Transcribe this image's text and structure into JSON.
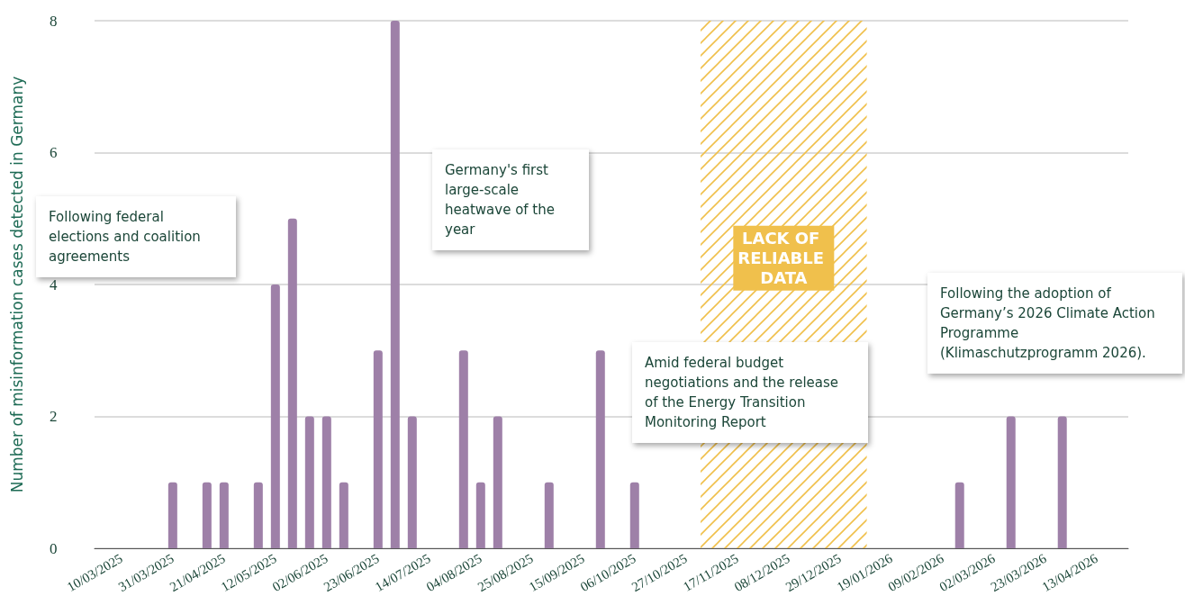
{
  "chart_data": {
    "type": "bar",
    "ylabel": "Number of misinformation cases detected in Germany",
    "x": [
      "2025-03-31",
      "2025-04-14",
      "2025-04-21",
      "2025-05-05",
      "2025-05-12",
      "2025-05-19",
      "2025-05-26",
      "2025-06-02",
      "2025-06-09",
      "2025-06-23",
      "2025-06-30",
      "2025-07-07",
      "2025-07-28",
      "2025-08-04",
      "2025-08-11",
      "2025-09-01",
      "2025-09-22",
      "2025-10-06",
      "2026-02-16",
      "2026-03-09",
      "2026-03-30"
    ],
    "values": [
      1,
      1,
      1,
      1,
      4,
      5,
      2,
      2,
      1,
      3,
      8,
      2,
      3,
      1,
      2,
      1,
      3,
      1,
      1,
      2,
      2
    ],
    "color": "#9e80a8",
    "xlim": [
      "2025-02-27",
      "2026-04-26"
    ],
    "xticks": [
      {
        "value": "2025-03-10",
        "label": "10/03/2025"
      },
      {
        "value": "2025-03-31",
        "label": "31/03/2025"
      },
      {
        "value": "2025-04-21",
        "label": "21/04/2025"
      },
      {
        "value": "2025-05-12",
        "label": "12/05/2025"
      },
      {
        "value": "2025-06-02",
        "label": "02/06/2025"
      },
      {
        "value": "2025-06-23",
        "label": "23/06/2025"
      },
      {
        "value": "2025-07-14",
        "label": "14/07/2025"
      },
      {
        "value": "2025-08-04",
        "label": "04/08/2025"
      },
      {
        "value": "2025-08-25",
        "label": "25/08/2025"
      },
      {
        "value": "2025-09-15",
        "label": "15/09/2025"
      },
      {
        "value": "2025-10-06",
        "label": "06/10/2025"
      },
      {
        "value": "2025-10-27",
        "label": "27/10/2025"
      },
      {
        "value": "2025-11-17",
        "label": "17/11/2025"
      },
      {
        "value": "2025-12-08",
        "label": "08/12/2025"
      },
      {
        "value": "2025-12-29",
        "label": "29/12/2025"
      },
      {
        "value": "2026-01-19",
        "label": "19/01/2026"
      },
      {
        "value": "2026-02-09",
        "label": "09/02/2026"
      },
      {
        "value": "2026-03-02",
        "label": "02/03/2026"
      },
      {
        "value": "2026-03-23",
        "label": "23/03/2026"
      },
      {
        "value": "2026-04-13",
        "label": "13/04/2026"
      }
    ],
    "ylim": [
      0,
      8
    ],
    "yticks": [
      0,
      2,
      4,
      6,
      8
    ],
    "grid": "y",
    "bands": [
      {
        "axis": "x",
        "from": "2025-11-02",
        "to": "2026-01-09",
        "label": "LACK OF RELIABLE DATA",
        "color": "#f0c04c"
      }
    ],
    "annotations": [
      "Following federal elections and coalition agreements",
      "Germany's first large-scale heatwave of the year",
      "Amid federal budget negotiations and the release of the Energy Transition Monitoring Report",
      "Following the adoption of Germany’s 2026 Climate Action Programme (Klimaschutzprogramm 2026)."
    ]
  }
}
